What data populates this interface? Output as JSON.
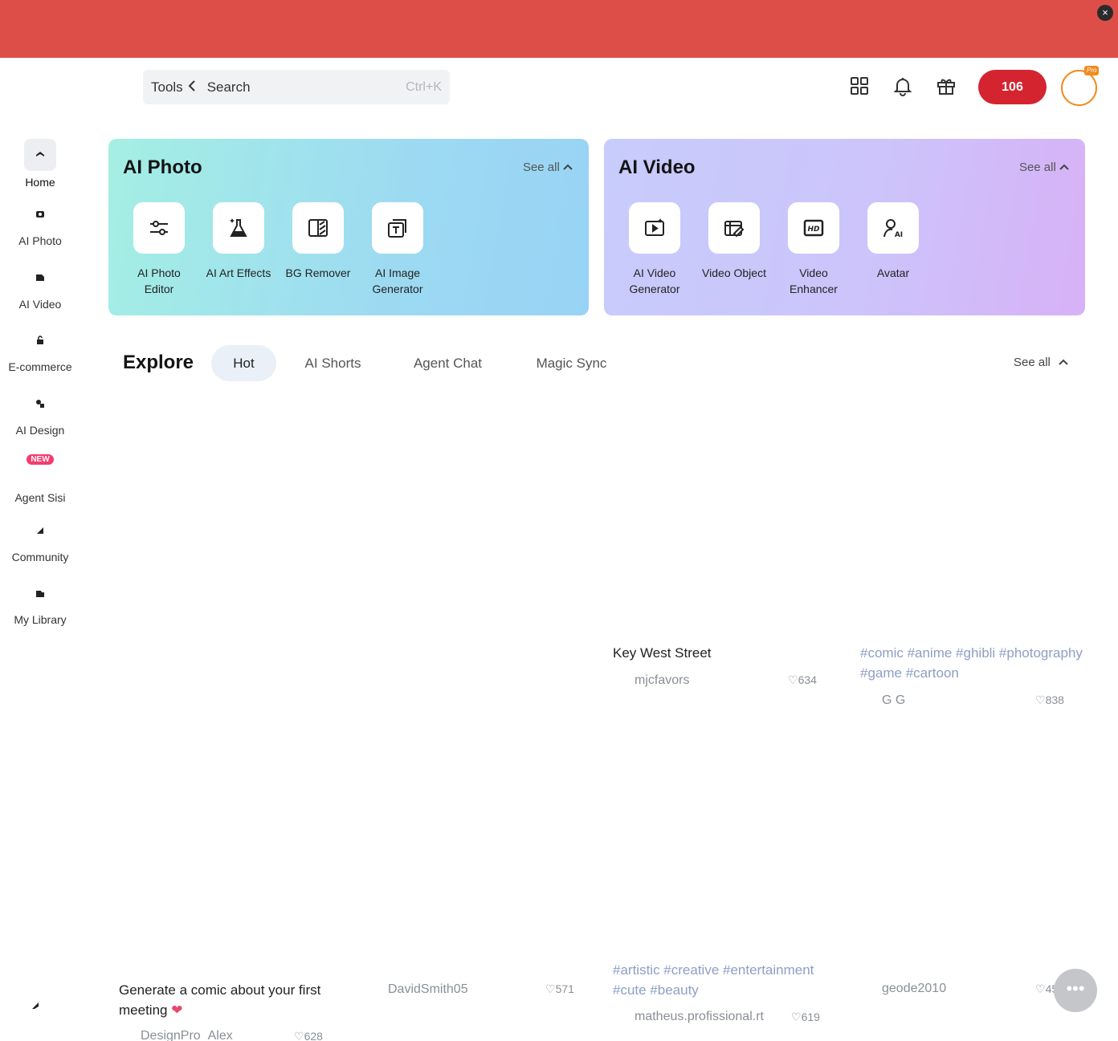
{
  "header": {
    "tools_label": "Tools",
    "search_placeholder": "Search",
    "search_shortcut": "Ctrl+K",
    "credits": "106",
    "pro_badge": "Pro"
  },
  "sidebar": {
    "items": [
      {
        "label": "Home",
        "icon": "home-icon"
      },
      {
        "label": "AI Photo",
        "icon": "ai-photo-icon"
      },
      {
        "label": "AI Video",
        "icon": "ai-video-icon"
      },
      {
        "label": "E-commerce",
        "icon": "ecommerce-icon"
      },
      {
        "label": "AI Design",
        "icon": "ai-design-icon"
      },
      {
        "label": "Agent Sisi",
        "icon": "agent-icon",
        "badge": "NEW"
      },
      {
        "label": "Community",
        "icon": "community-icon"
      },
      {
        "label": "My Library",
        "icon": "library-icon"
      }
    ]
  },
  "ai_photo": {
    "title": "AI Photo",
    "see_all": "See all",
    "tools": [
      {
        "label": "AI Photo Editor",
        "icon": "sliders-icon"
      },
      {
        "label": "AI Art Effects",
        "icon": "flask-icon"
      },
      {
        "label": "BG Remover",
        "icon": "bg-remover-icon"
      },
      {
        "label": "AI Image Generator",
        "icon": "image-generator-icon"
      }
    ]
  },
  "ai_video": {
    "title": "AI Video",
    "see_all": "See all",
    "tools": [
      {
        "label": "AI Video Generator",
        "icon": "video-generator-icon"
      },
      {
        "label": "Video Object",
        "icon": "video-object-icon"
      },
      {
        "label": "Video Enhancer",
        "icon": "hd-icon"
      },
      {
        "label": "Avatar",
        "icon": "avatar-ai-icon"
      }
    ]
  },
  "explore": {
    "title": "Explore",
    "tabs": [
      "Hot",
      "AI Shorts",
      "Agent Chat",
      "Magic Sync"
    ],
    "active_tab": "Hot",
    "see_all": "See all"
  },
  "feed": [
    {
      "text": "Key West Street",
      "user": "mjcfavors",
      "likes": "634"
    },
    {
      "text": "#comic #anime #ghibli #photography #game #cartoon",
      "user": "G G",
      "likes": "838"
    },
    {
      "text": "Generate a comic about your first meeting",
      "user": "DesignPro_Alex",
      "likes": "628"
    },
    {
      "text": "",
      "user": "DavidSmith05",
      "likes": "571"
    },
    {
      "text": "#artistic #creative #entertainment #cute #beauty",
      "user": "matheus.profissional.rt",
      "likes": "619"
    },
    {
      "text": "",
      "user": "geode2010",
      "likes": "455"
    }
  ],
  "colors": {
    "banner": "#de4e49",
    "credits_button": "#d4242f",
    "avatar_ring": "#f28a1e",
    "new_badge": "#f43d6e",
    "tag_text": "#8d9fc4"
  }
}
